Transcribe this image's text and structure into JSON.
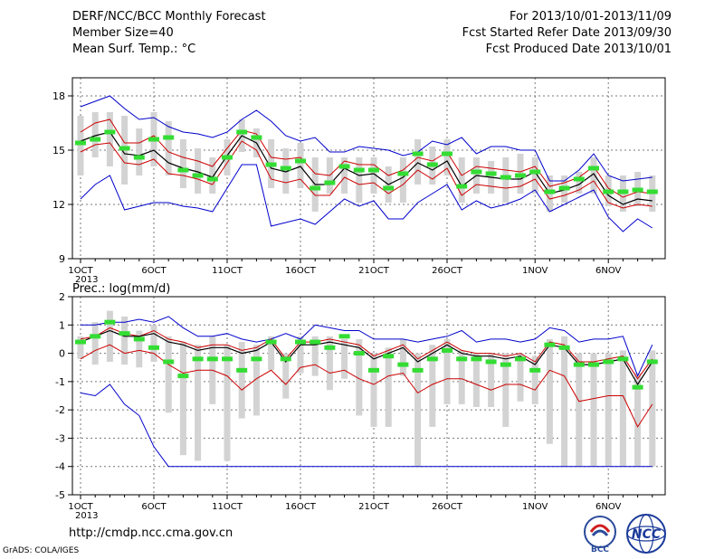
{
  "header": {
    "title": "DERF/NCC/BCC Monthly Forecast",
    "member": "Member Size=40",
    "variable": "Mean Surf. Temp.: °C",
    "period": "For 2013/10/01-2013/11/09",
    "started": "Fcst Started Refer Date 2013/09/30",
    "produced": "Fcst Produced Date 2013/10/01"
  },
  "footer": {
    "url": "http://cmdp.ncc.cma.gov.cn",
    "credit": "GrADS: COLA/IGES",
    "logo_bcc": "BCC",
    "logo_ncc": "NCC"
  },
  "colors": {
    "envelope": "#0000cc",
    "spread": "#cc0000",
    "mean": "#000000",
    "box": "#d3d3d3",
    "median": "#33dd33"
  },
  "chart_data": [
    {
      "type": "line",
      "title": "Mean Surf. Temp.: °C",
      "x_tick_labels": [
        "1OCT",
        "6OCT",
        "11OCT",
        "16OCT",
        "21OCT",
        "26OCT",
        "1NOV",
        "6NOV"
      ],
      "x_tick_days": [
        1,
        6,
        11,
        16,
        21,
        26,
        32,
        37
      ],
      "x_sublabel": "2013",
      "ylim": [
        9,
        19
      ],
      "y_ticks": [
        9,
        12,
        15,
        18
      ],
      "grid": true,
      "series": [
        {
          "role": "max",
          "values": [
            17.4,
            17.7,
            18.0,
            17.3,
            16.7,
            16.8,
            16.3,
            16.0,
            15.9,
            15.7,
            16.0,
            16.7,
            17.2,
            16.6,
            15.8,
            15.5,
            15.7,
            14.9,
            14.9,
            15.2,
            15.1,
            15.0,
            14.7,
            14.9,
            15.5,
            15.3,
            15.7,
            14.8,
            15.2,
            15.2,
            15.0,
            15.0,
            13.3,
            13.3,
            13.9,
            14.8,
            13.6,
            13.3,
            13.4,
            13.5
          ]
        },
        {
          "role": "upper",
          "values": [
            16.0,
            16.5,
            16.7,
            15.4,
            15.4,
            15.8,
            14.9,
            14.6,
            14.4,
            14.1,
            15.1,
            16.1,
            15.9,
            14.6,
            14.5,
            14.6,
            13.7,
            13.6,
            14.4,
            14.2,
            14.2,
            13.6,
            13.9,
            14.6,
            14.4,
            14.9,
            13.6,
            14.1,
            14.0,
            13.9,
            13.8,
            14.1,
            13.0,
            13.2,
            13.5,
            14.1,
            12.9,
            12.4,
            12.7,
            12.6
          ]
        },
        {
          "role": "mean",
          "values": [
            15.5,
            15.8,
            16.0,
            14.8,
            14.7,
            15.0,
            14.3,
            14.0,
            13.8,
            13.5,
            14.7,
            15.8,
            15.4,
            14.0,
            13.8,
            14.1,
            13.1,
            13.1,
            14.0,
            13.6,
            13.7,
            13.1,
            13.5,
            14.3,
            13.9,
            14.4,
            13.0,
            13.6,
            13.5,
            13.4,
            13.4,
            13.8,
            12.6,
            12.8,
            13.1,
            13.7,
            12.5,
            12.0,
            12.3,
            12.2
          ]
        },
        {
          "role": "lower",
          "values": [
            14.9,
            15.3,
            15.4,
            14.3,
            14.2,
            14.5,
            13.7,
            13.6,
            13.4,
            13.1,
            14.3,
            15.5,
            15.0,
            13.4,
            13.2,
            13.4,
            12.5,
            12.5,
            13.5,
            13.1,
            13.2,
            12.6,
            13.1,
            13.9,
            13.4,
            14.0,
            12.5,
            13.1,
            13.0,
            12.9,
            13.0,
            13.4,
            12.3,
            12.5,
            12.8,
            13.3,
            12.1,
            11.8,
            12.0,
            11.9
          ]
        },
        {
          "role": "min",
          "values": [
            12.3,
            13.1,
            13.6,
            11.7,
            11.9,
            12.1,
            12.1,
            11.9,
            11.8,
            11.6,
            12.9,
            14.2,
            14.2,
            10.8,
            11.0,
            11.2,
            10.9,
            11.6,
            12.3,
            11.9,
            12.2,
            11.2,
            11.2,
            12.1,
            12.6,
            13.1,
            11.7,
            12.2,
            11.8,
            12.0,
            12.3,
            12.8,
            11.6,
            12.0,
            12.4,
            12.8,
            11.3,
            10.5,
            11.2,
            10.7
          ]
        },
        {
          "role": "box_high",
          "values": [
            16.9,
            17.1,
            17.1,
            16.9,
            16.2,
            17.1,
            16.6,
            15.6,
            15.1,
            14.6,
            15.6,
            16.7,
            16.2,
            15.6,
            15.1,
            15.4,
            14.6,
            14.6,
            14.6,
            14.6,
            14.6,
            14.1,
            14.6,
            15.6,
            15.2,
            15.6,
            14.6,
            14.6,
            14.4,
            14.6,
            14.8,
            14.6,
            13.6,
            13.6,
            13.8,
            14.6,
            13.6,
            13.6,
            13.8,
            13.6
          ]
        },
        {
          "role": "box_low",
          "values": [
            13.6,
            14.6,
            14.1,
            13.1,
            13.6,
            14.1,
            13.6,
            12.9,
            12.6,
            12.6,
            13.6,
            14.9,
            14.6,
            12.9,
            12.6,
            12.9,
            11.6,
            12.6,
            12.6,
            12.1,
            12.6,
            12.1,
            12.1,
            13.1,
            13.1,
            13.6,
            12.1,
            12.6,
            12.6,
            12.1,
            12.6,
            12.6,
            11.6,
            12.1,
            12.6,
            12.6,
            11.9,
            11.6,
            11.9,
            11.6
          ]
        },
        {
          "role": "median",
          "values": [
            15.4,
            15.6,
            16.0,
            15.1,
            14.6,
            15.6,
            15.7,
            13.9,
            13.6,
            13.4,
            14.6,
            16.0,
            15.7,
            14.2,
            14.0,
            14.4,
            12.9,
            13.2,
            14.1,
            13.9,
            13.9,
            12.9,
            13.7,
            14.8,
            14.2,
            14.8,
            13.0,
            13.8,
            13.7,
            13.5,
            13.6,
            13.8,
            12.7,
            12.9,
            13.4,
            14.0,
            12.7,
            12.7,
            12.8,
            12.7
          ]
        }
      ]
    },
    {
      "type": "line",
      "title": "Prec.: log(mm/d)",
      "x_tick_labels": [
        "1OCT",
        "6OCT",
        "11OCT",
        "16OCT",
        "21OCT",
        "26OCT",
        "1NOV",
        "6NOV"
      ],
      "x_tick_days": [
        1,
        6,
        11,
        16,
        21,
        26,
        32,
        37
      ],
      "x_sublabel": "2013",
      "ylim": [
        -5,
        2
      ],
      "y_ticks": [
        -5,
        -4,
        -3,
        -2,
        -1,
        0,
        1,
        2
      ],
      "grid": true,
      "series": [
        {
          "role": "max",
          "values": [
            1.0,
            1.0,
            1.1,
            1.1,
            1.2,
            1.1,
            1.3,
            0.9,
            0.6,
            0.6,
            0.7,
            0.5,
            0.4,
            0.5,
            0.7,
            0.5,
            1.0,
            0.9,
            0.8,
            0.8,
            0.5,
            0.5,
            0.5,
            0.4,
            0.5,
            0.6,
            0.8,
            0.4,
            0.5,
            0.5,
            0.4,
            0.5,
            0.9,
            0.8,
            0.4,
            0.5,
            0.5,
            0.6,
            -0.8,
            0.3
          ]
        },
        {
          "role": "upper",
          "values": [
            0.5,
            0.6,
            0.9,
            0.7,
            0.6,
            0.8,
            0.5,
            0.4,
            0.2,
            0.3,
            0.3,
            0.1,
            0.2,
            0.5,
            -0.2,
            0.4,
            0.4,
            0.5,
            0.4,
            0.3,
            -0.1,
            0.1,
            0.3,
            -0.2,
            0.1,
            0.4,
            0.1,
            0.0,
            0.0,
            -0.1,
            0.0,
            -0.3,
            0.4,
            0.3,
            -0.3,
            -0.3,
            -0.2,
            -0.1,
            -0.9,
            -0.2
          ]
        },
        {
          "role": "mean",
          "values": [
            0.4,
            0.6,
            0.8,
            0.6,
            0.6,
            0.7,
            0.4,
            0.3,
            0.1,
            0.2,
            0.2,
            0.0,
            0.1,
            0.4,
            -0.3,
            0.3,
            0.3,
            0.4,
            0.3,
            0.2,
            -0.2,
            0.0,
            0.2,
            -0.3,
            0.0,
            0.3,
            0.0,
            -0.1,
            -0.1,
            -0.2,
            -0.1,
            -0.4,
            0.3,
            0.2,
            -0.4,
            -0.4,
            -0.3,
            -0.2,
            -1.1,
            -0.3
          ]
        },
        {
          "role": "lower",
          "values": [
            -0.2,
            0.1,
            0.3,
            0.0,
            0.1,
            0.0,
            -0.4,
            -0.7,
            -0.6,
            -0.6,
            -0.8,
            -1.3,
            -0.9,
            -0.6,
            -1.1,
            -0.5,
            -0.4,
            -0.7,
            -0.6,
            -0.9,
            -1.1,
            -0.8,
            -0.7,
            -1.4,
            -1.1,
            -0.9,
            -0.9,
            -1.1,
            -1.3,
            -1.1,
            -1.1,
            -1.3,
            -0.6,
            -0.8,
            -1.7,
            -1.6,
            -1.5,
            -1.5,
            -2.6,
            -1.8
          ]
        },
        {
          "role": "min",
          "values": [
            -1.4,
            -1.5,
            -1.1,
            -1.8,
            -2.2,
            -3.3,
            -4.0,
            -4.0,
            -4.0,
            -4.0,
            -4.0,
            -4.0,
            -4.0,
            -4.0,
            -4.0,
            -4.0,
            -4.0,
            -4.0,
            -4.0,
            -4.0,
            -4.0,
            -4.0,
            -4.0,
            -4.0,
            -4.0,
            -4.0,
            -4.0,
            -4.0,
            -4.0,
            -4.0,
            -4.0,
            -4.0,
            -4.0,
            -4.0,
            -4.0,
            -4.0,
            -4.0,
            -4.0,
            -4.0,
            -4.0
          ]
        },
        {
          "role": "box_high",
          "values": [
            0.6,
            1.1,
            1.5,
            1.3,
            0.8,
            1.0,
            0.6,
            0.4,
            0.3,
            0.6,
            0.3,
            0.4,
            0.3,
            0.6,
            0.0,
            0.6,
            0.6,
            0.6,
            0.5,
            0.5,
            0.0,
            0.2,
            0.5,
            0.0,
            0.3,
            0.5,
            0.1,
            0.0,
            0.0,
            0.0,
            0.0,
            -0.1,
            0.5,
            0.6,
            0.0,
            0.0,
            0.0,
            0.1,
            -0.7,
            0.1
          ]
        },
        {
          "role": "box_low",
          "values": [
            -0.2,
            -0.4,
            -0.3,
            -0.4,
            -0.5,
            -0.3,
            -2.1,
            -3.6,
            -3.8,
            -1.8,
            -3.8,
            -2.3,
            -2.2,
            -0.6,
            -1.6,
            -0.7,
            -0.8,
            -1.3,
            -0.9,
            -2.2,
            -2.6,
            -2.6,
            -0.8,
            -4.0,
            -2.6,
            -1.8,
            -1.8,
            -1.9,
            -1.9,
            -2.6,
            -1.7,
            -1.8,
            -3.2,
            -4.0,
            -4.0,
            -4.0,
            -4.0,
            -4.0,
            -4.0,
            -4.0
          ]
        },
        {
          "role": "median",
          "values": [
            0.4,
            0.6,
            1.1,
            0.7,
            0.5,
            0.2,
            -0.3,
            -0.8,
            -0.2,
            -0.2,
            -0.2,
            -0.6,
            -0.2,
            0.4,
            -0.2,
            0.4,
            0.4,
            0.2,
            0.6,
            0.0,
            -0.6,
            -0.1,
            -0.4,
            -0.6,
            -0.2,
            0.1,
            -0.2,
            -0.2,
            -0.3,
            -0.4,
            -0.2,
            -0.6,
            0.3,
            0.2,
            -0.4,
            -0.4,
            -0.3,
            -0.2,
            -1.2,
            -0.3
          ]
        }
      ]
    }
  ]
}
